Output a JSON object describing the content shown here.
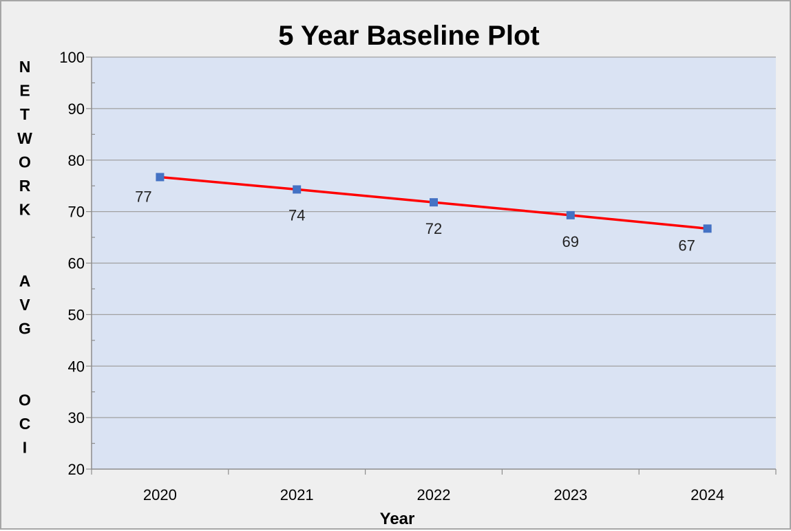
{
  "chart_data": {
    "type": "line",
    "title": "5 Year Baseline Plot",
    "xlabel": "Year",
    "ylabel": "NETWORK  AVG  OCI",
    "categories": [
      "2020",
      "2021",
      "2022",
      "2023",
      "2024"
    ],
    "series": [
      {
        "values": [
          76.7,
          74.3,
          71.8,
          69.3,
          66.7
        ],
        "data_labels": [
          "77",
          "74",
          "72",
          "69",
          "67"
        ],
        "line_color": "#ff0000",
        "marker_color": "#4472c4",
        "marker": "square"
      }
    ],
    "ylim": [
      20,
      100
    ],
    "yticks": [
      "20",
      "30",
      "40",
      "50",
      "60",
      "70",
      "80",
      "90",
      "100"
    ],
    "grid": true,
    "legend": "none",
    "plot_background": "#dae3f3",
    "chart_background": "#efefef"
  }
}
